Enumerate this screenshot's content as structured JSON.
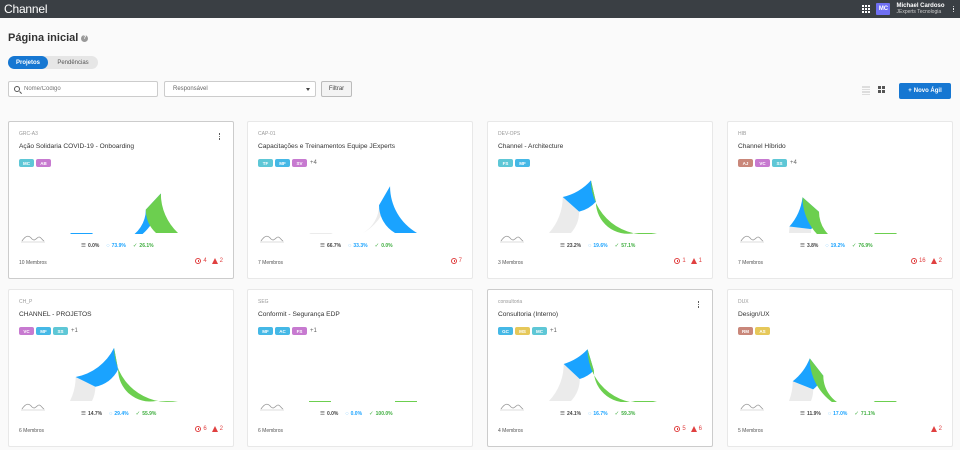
{
  "app": {
    "brand": "Channel"
  },
  "user": {
    "initials": "MC",
    "name": "Michael Cardoso",
    "company": "JExperts Tecnologia"
  },
  "page": {
    "title": "Página inicial"
  },
  "tabs": [
    {
      "label": "Projetos",
      "active": true
    },
    {
      "label": "Pendências",
      "active": false
    }
  ],
  "filters": {
    "search_placeholder": "Nome/Código",
    "responsavel": "Responsável",
    "filter_label": "Filtrar"
  },
  "actions": {
    "new_label": "Novo Ágil"
  },
  "colors": {
    "done": "#6ccf4f",
    "doing": "#1aa3ff",
    "todo": "#ebebeb",
    "alert": "#e04040",
    "primary": "#1677d2"
  },
  "projects": [
    {
      "code": "GRC-A3",
      "name": "Ação Solidaria COVID-19 - Onboarding",
      "menu": true,
      "badges": [
        {
          "label": "MC",
          "color": "#5ec7d6"
        },
        {
          "label": "AB",
          "color": "#c77ad0"
        }
      ],
      "more": "",
      "todo": 0.0,
      "doing": 73.9,
      "done": 26.1,
      "todo_label": "0.0%",
      "doing_label": "73.9%",
      "done_label": "26.1%",
      "members": "10 Membros",
      "late": "4",
      "issues": "2"
    },
    {
      "code": "CAP-01",
      "name": "Capacitações e Treinamentos Equipe JExperts",
      "menu": false,
      "badges": [
        {
          "label": "TF",
          "color": "#5ec7d6"
        },
        {
          "label": "MF",
          "color": "#45b8e6"
        },
        {
          "label": "SV",
          "color": "#c77ad0"
        }
      ],
      "more": "+4",
      "todo": 66.7,
      "doing": 33.3,
      "done": 0.0,
      "todo_label": "66.7%",
      "doing_label": "33.3%",
      "done_label": "0.0%",
      "members": "7 Membros",
      "late": "7",
      "issues": ""
    },
    {
      "code": "DEV-OPS",
      "name": "Channel - Architecture",
      "menu": false,
      "badges": [
        {
          "label": "FS",
          "color": "#5ec7d6"
        },
        {
          "label": "MF",
          "color": "#45b8e6"
        }
      ],
      "more": "",
      "todo": 23.2,
      "doing": 19.6,
      "done": 57.1,
      "todo_label": "23.2%",
      "doing_label": "19.6%",
      "done_label": "57.1%",
      "members": "3 Membros",
      "late": "1",
      "issues": "1"
    },
    {
      "code": "HIB",
      "name": "Channel Híbrido",
      "menu": false,
      "badges": [
        {
          "label": "AJ",
          "color": "#c9877a"
        },
        {
          "label": "VC",
          "color": "#c77ad0"
        },
        {
          "label": "SS",
          "color": "#5ec7d6"
        }
      ],
      "more": "+4",
      "todo": 3.8,
      "doing": 19.2,
      "done": 76.9,
      "todo_label": "3.8%",
      "doing_label": "19.2%",
      "done_label": "76.9%",
      "members": "7 Membros",
      "late": "16",
      "issues": "2"
    },
    {
      "code": "CH_P",
      "name": "CHANNEL - PROJETOS",
      "menu": false,
      "badges": [
        {
          "label": "VC",
          "color": "#c77ad0"
        },
        {
          "label": "MF",
          "color": "#45b8e6"
        },
        {
          "label": "SS",
          "color": "#5ec7d6"
        }
      ],
      "more": "+1",
      "todo": 14.7,
      "doing": 29.4,
      "done": 55.9,
      "todo_label": "14.7%",
      "doing_label": "29.4%",
      "done_label": "55.9%",
      "members": "6 Membros",
      "late": "6",
      "issues": "2"
    },
    {
      "code": "SEG",
      "name": "Conformit - Segurança EDP",
      "menu": false,
      "badges": [
        {
          "label": "MF",
          "color": "#45b8e6"
        },
        {
          "label": "AC",
          "color": "#45b8e6"
        },
        {
          "label": "FS",
          "color": "#c77ad0"
        }
      ],
      "more": "+1",
      "todo": 0.0,
      "doing": 0.0,
      "done": 100.0,
      "todo_label": "0.0%",
      "doing_label": "0.0%",
      "done_label": "100.0%",
      "members": "6 Membros",
      "late": "",
      "issues": ""
    },
    {
      "code": "consultoria",
      "name": "Consultoria (Interno)",
      "menu": true,
      "badges": [
        {
          "label": "GC",
          "color": "#45b8e6"
        },
        {
          "label": "MS",
          "color": "#e6c85a"
        },
        {
          "label": "MC",
          "color": "#5ec7d6"
        }
      ],
      "more": "+1",
      "todo": 24.1,
      "doing": 16.7,
      "done": 59.3,
      "todo_label": "24.1%",
      "doing_label": "16.7%",
      "done_label": "59.3%",
      "members": "4 Membros",
      "late": "5",
      "issues": "6"
    },
    {
      "code": "DUX",
      "name": "Design/UX",
      "menu": false,
      "badges": [
        {
          "label": "RM",
          "color": "#c9877a"
        },
        {
          "label": "AS",
          "color": "#e6c85a"
        }
      ],
      "more": "",
      "todo": 11.9,
      "doing": 17.0,
      "done": 71.1,
      "todo_label": "11.9%",
      "doing_label": "17.0%",
      "done_label": "71.1%",
      "members": "5 Membros",
      "late": "",
      "issues": "2"
    }
  ]
}
